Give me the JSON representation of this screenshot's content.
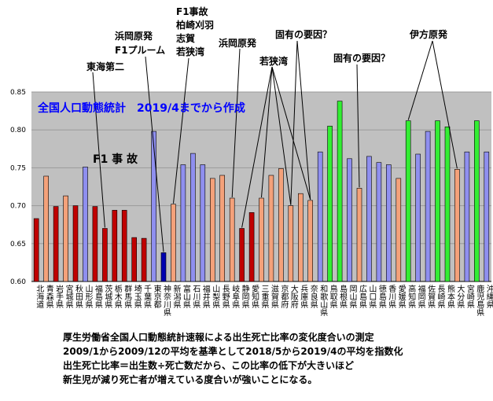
{
  "chart_data": {
    "type": "bar",
    "title": "全国人口動態統計　2019/4までから作成",
    "ylim": [
      0.6,
      0.85
    ],
    "yticks": [
      "0.60",
      "0.65",
      "0.70",
      "0.75",
      "0.80",
      "0.85"
    ],
    "categories": [
      "北海道",
      "青森県",
      "岩手県",
      "宮城県",
      "秋田県",
      "山形県",
      "福島県",
      "茨城県",
      "栃木県",
      "群馬県",
      "埼玉県",
      "千葉県",
      "東京都",
      "神奈川県",
      "新潟県",
      "富山県",
      "石川県",
      "福井県",
      "山梨県",
      "長野県",
      "岐阜県",
      "静岡県",
      "愛知県",
      "三重県",
      "滋賀県",
      "京都府",
      "大阪府",
      "兵庫県",
      "奈良県",
      "和歌山県",
      "鳥取県",
      "島根県",
      "岡山県",
      "広島県",
      "山口県",
      "徳島県",
      "香川県",
      "愛媛県",
      "高知県",
      "福岡県",
      "佐賀県",
      "長崎県",
      "熊本県",
      "大分県",
      "宮崎県",
      "鹿児島県",
      "沖縄県"
    ],
    "values": [
      0.683,
      0.739,
      0.699,
      0.713,
      0.7,
      0.751,
      0.699,
      0.67,
      0.694,
      0.694,
      0.658,
      0.657,
      0.798,
      0.638,
      0.702,
      0.754,
      0.769,
      0.754,
      0.736,
      0.74,
      0.71,
      0.67,
      0.691,
      0.71,
      0.74,
      0.749,
      0.7,
      0.716,
      0.707,
      0.771,
      0.805,
      0.838,
      0.762,
      0.723,
      0.765,
      0.757,
      0.754,
      0.736,
      0.812,
      0.768,
      0.798,
      0.812,
      0.804,
      0.748,
      0.771,
      0.812,
      0.771
    ],
    "color_groups": [
      "red",
      "orange",
      "red",
      "orange",
      "red",
      "blue",
      "red",
      "red",
      "red",
      "red",
      "red",
      "red",
      "blue",
      "darkblue",
      "orange",
      "blue",
      "blue",
      "blue",
      "orange",
      "orange",
      "orange",
      "red",
      "red",
      "orange",
      "orange",
      "orange",
      "orange",
      "orange",
      "orange",
      "blue",
      "green",
      "green",
      "blue",
      "orange",
      "blue",
      "blue",
      "blue",
      "orange",
      "green",
      "blue",
      "blue",
      "green",
      "green",
      "orange",
      "blue",
      "green",
      "blue"
    ],
    "colors": {
      "red": "#c00000",
      "orange": "#f4a17a",
      "blue": "#8f8fef",
      "darkblue": "#0000b0",
      "green": "#33ee33"
    },
    "plot_background": "#c0c0c0",
    "grid": true
  },
  "annotations": {
    "f1": "F1 事 故",
    "tokai": "東海第二",
    "hamaoka1_l1": "浜岡原発",
    "hamaoka1_l2": "F1プルーム",
    "f1group_l1": "F1事故",
    "f1group_l2": "柏崎刈羽",
    "f1group_l3": "志賀",
    "f1group_l4": "若狭湾",
    "hamaoka2": "浜岡原発",
    "wakasa": "若狭湾",
    "koyu1": "固有の要因？",
    "koyu2": "固有の要因？",
    "ikata": "伊方原発"
  },
  "notes": [
    "厚生労働省全国人口動態統計速報による出生死亡比率の変化度合いの測定",
    "2009/1から2009/12の平均を基準として2018/5から2019/4の平均を指数化",
    "出生死亡比率＝出生数÷死亡数だから、この比率の低下が大きいほど",
    "新生児が減り死亡者が増えている度合いが強いことになる。"
  ]
}
